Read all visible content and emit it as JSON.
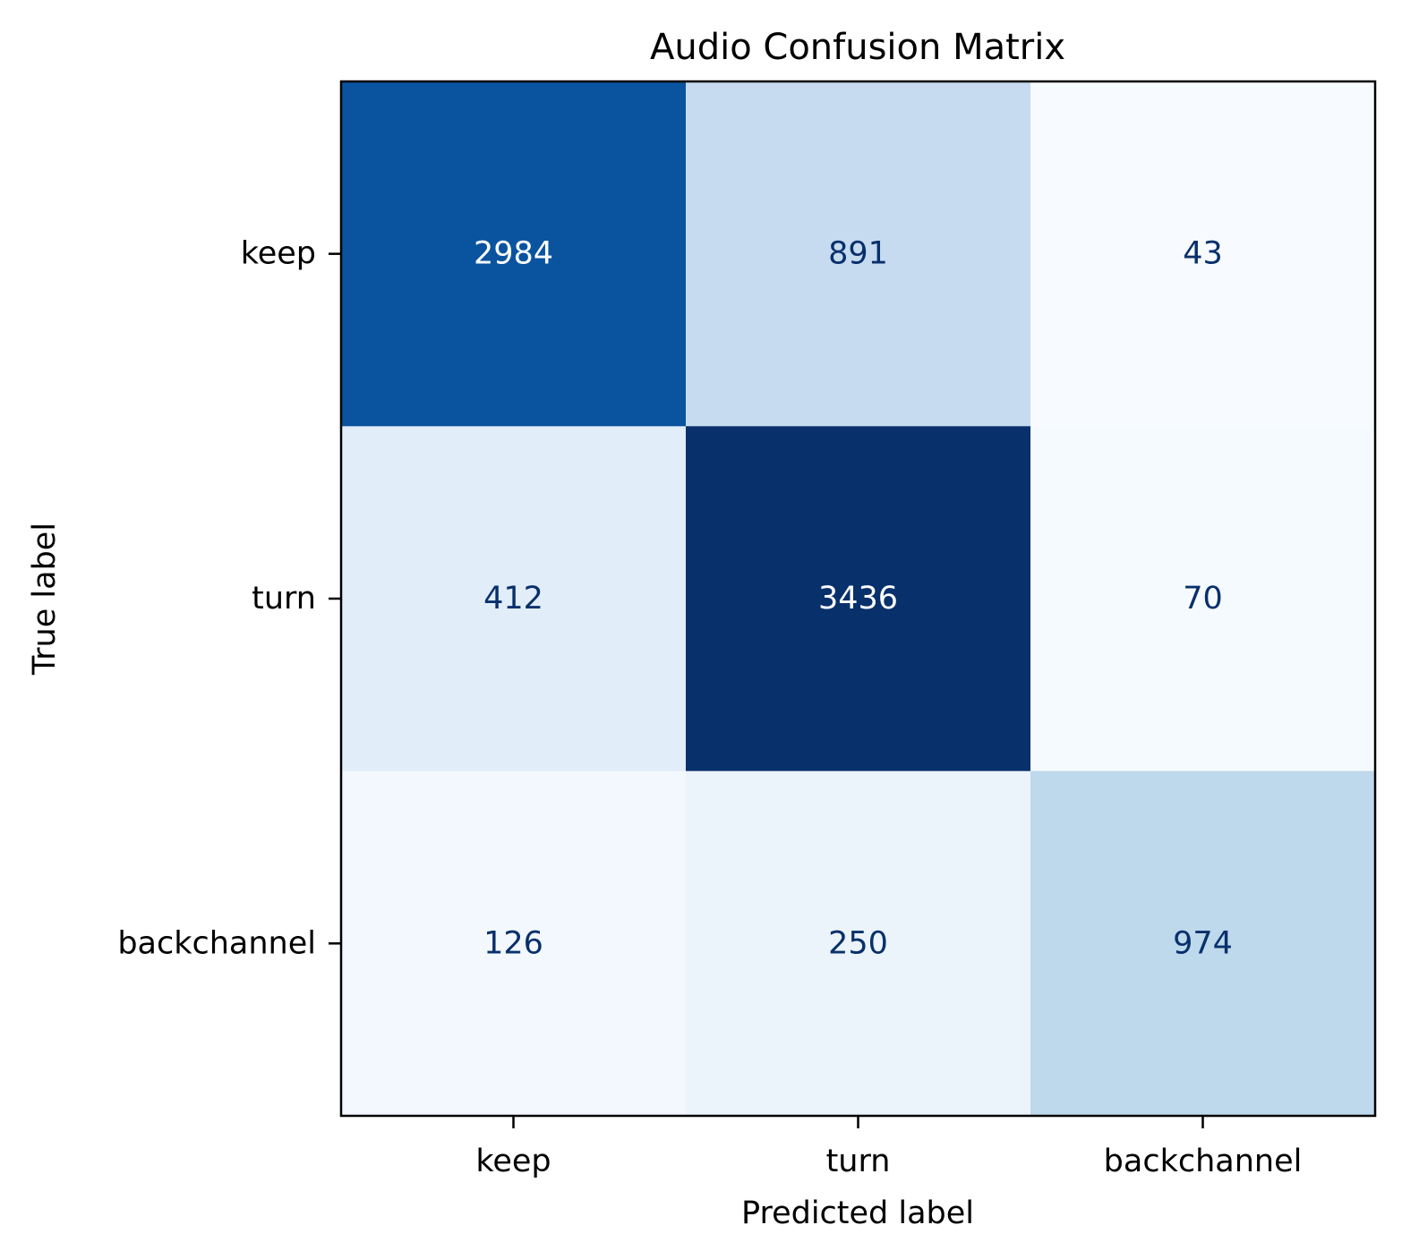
{
  "chart_data": {
    "type": "heatmap",
    "title": "Audio Confusion Matrix",
    "xlabel": "Predicted label",
    "ylabel": "True label",
    "x_categories": [
      "keep",
      "turn",
      "backchannel"
    ],
    "y_categories": [
      "keep",
      "turn",
      "backchannel"
    ],
    "values": [
      [
        2984,
        891,
        43
      ],
      [
        412,
        3436,
        70
      ],
      [
        126,
        250,
        974
      ]
    ],
    "colormap": "Blues",
    "vmin": 43,
    "vmax": 3436,
    "colorbar": false,
    "grid": false
  }
}
